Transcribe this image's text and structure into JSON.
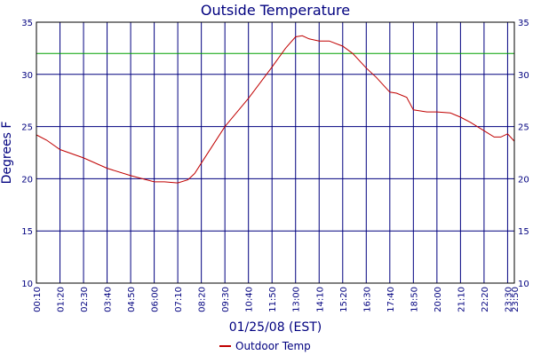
{
  "chart_data": {
    "type": "line",
    "title": "Outside Temperature",
    "xlabel": "01/25/08 (EST)",
    "ylabel": "Degrees F",
    "ylim": [
      10,
      35
    ],
    "yticks": [
      10,
      15,
      20,
      25,
      30,
      35
    ],
    "grid": true,
    "legend_position": "bottom-center",
    "x_tick_labels": [
      "00:10",
      "01:20",
      "02:30",
      "03:40",
      "04:50",
      "06:00",
      "07:10",
      "08:20",
      "09:30",
      "10:40",
      "11:50",
      "13:00",
      "14:10",
      "15:20",
      "16:30",
      "17:40",
      "18:50",
      "20:00",
      "21:10",
      "22:20",
      "23:30",
      "23:50"
    ],
    "x_tick_minutes": [
      10,
      80,
      150,
      220,
      290,
      360,
      430,
      500,
      570,
      640,
      710,
      780,
      850,
      920,
      990,
      1060,
      1130,
      1200,
      1270,
      1340,
      1410,
      1430
    ],
    "reference_line": {
      "value": 32,
      "color": "#00a000"
    },
    "colors": {
      "plot_border": "#000000",
      "grid": "#00007f",
      "text": "#00007f",
      "series": "#c00000"
    },
    "series": [
      {
        "name": "Outdoor Temp",
        "color": "#c00000",
        "x": [
          "00:10",
          "00:40",
          "01:20",
          "02:30",
          "03:40",
          "04:50",
          "06:00",
          "06:30",
          "07:10",
          "07:40",
          "08:00",
          "08:20",
          "09:30",
          "10:40",
          "11:50",
          "12:30",
          "13:00",
          "13:20",
          "13:40",
          "14:10",
          "14:40",
          "15:20",
          "15:50",
          "16:30",
          "17:00",
          "17:40",
          "18:00",
          "18:30",
          "18:50",
          "19:30",
          "20:00",
          "20:40",
          "21:10",
          "21:40",
          "22:20",
          "22:50",
          "23:10",
          "23:30",
          "23:50"
        ],
        "values": [
          24.2,
          23.7,
          22.8,
          22.0,
          21.0,
          20.3,
          19.7,
          19.7,
          19.6,
          19.9,
          20.5,
          21.5,
          25.0,
          27.7,
          30.7,
          32.5,
          33.6,
          33.7,
          33.4,
          33.2,
          33.2,
          32.7,
          32.0,
          30.6,
          29.7,
          28.3,
          28.2,
          27.8,
          26.6,
          26.4,
          26.4,
          26.3,
          25.9,
          25.4,
          24.6,
          24.0,
          24.0,
          24.3,
          23.6
        ]
      }
    ]
  }
}
